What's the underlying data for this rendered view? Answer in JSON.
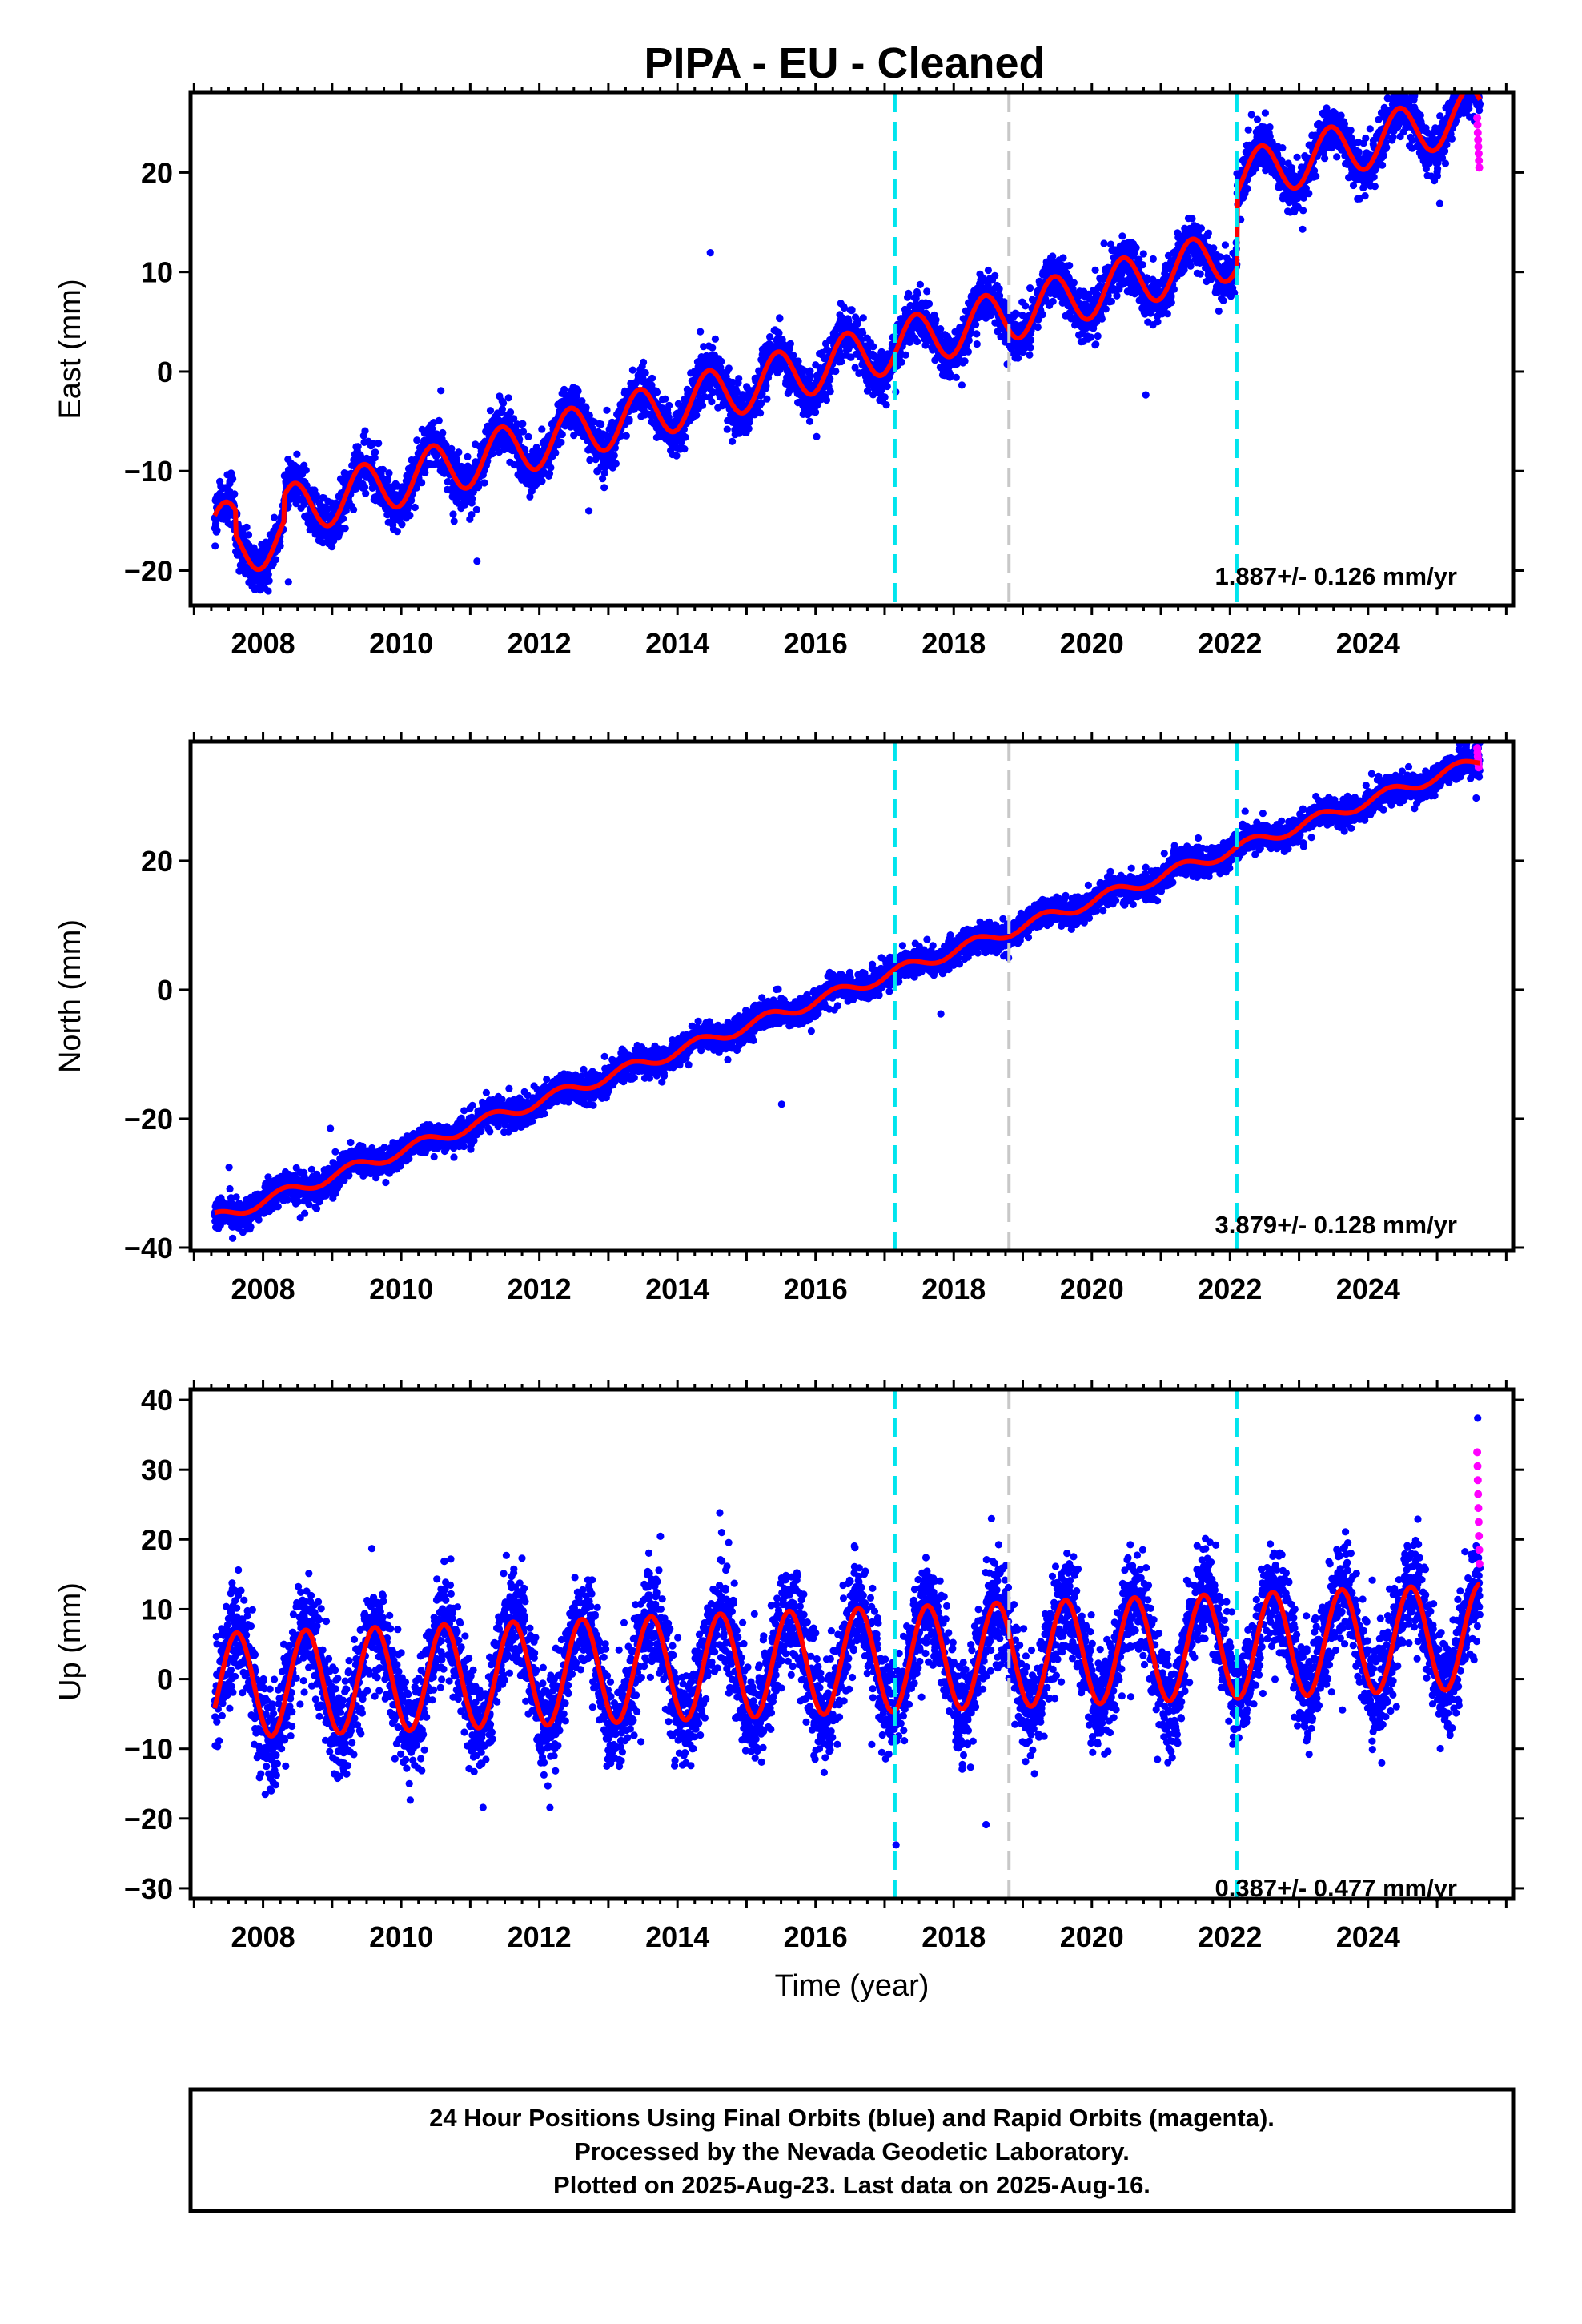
{
  "figure": {
    "title": "PIPA  - EU - Cleaned",
    "footer": [
      "24 Hour Positions Using Final Orbits (blue) and Rapid Orbits (magenta).",
      "Processed by the Nevada Geodetic Laboratory.",
      "Plotted on 2025-Aug-23. Last data on 2025-Aug-16."
    ]
  },
  "chart_data": [
    {
      "type": "scatter",
      "component": "East",
      "ylabel": "East (mm)",
      "xlabel": "",
      "xlim": [
        2006.95,
        2026.1
      ],
      "ylim": [
        -23.5,
        28
      ],
      "x_ticks": [
        2008,
        2010,
        2012,
        2014,
        2016,
        2018,
        2020,
        2022,
        2024
      ],
      "y_ticks": [
        -20,
        -10,
        0,
        10,
        20
      ],
      "rate": "1.887+/- 0.126 mm/yr",
      "model": {
        "start": 2007.3,
        "end": 2025.62,
        "y_at_start": -16.0,
        "slope_mm_per_yr": 1.887,
        "annual_amplitude": 2.6,
        "annual_peak": 0.45,
        "scatter_sigma": 1.2,
        "offsets": [
          {
            "epoch": 2007.6,
            "step": -2.5
          },
          {
            "epoch": 2008.3,
            "step": 2.5
          },
          {
            "epoch": 2022.1,
            "step": 7.5
          }
        ]
      },
      "rapid_points": {
        "x_start": 2025.58,
        "y_values": [
          25.5,
          24.8,
          24,
          23.3,
          22.6,
          21.9,
          21.2,
          20.5
        ]
      },
      "series": [
        {
          "name": "Final Orbits",
          "color": "#0000ff"
        },
        {
          "name": "Rapid Orbits",
          "color": "#ff00ff"
        }
      ],
      "vertical_lines": [
        {
          "x": 2017.15,
          "style": "cyan-dashed",
          "color": "#00e5ee"
        },
        {
          "x": 2018.8,
          "style": "gray-dashed",
          "color": "#c8c8c8"
        },
        {
          "x": 2022.1,
          "style": "cyan-dashed",
          "color": "#00e5ee"
        }
      ]
    },
    {
      "type": "scatter",
      "component": "North",
      "ylabel": "North (mm)",
      "xlabel": "",
      "xlim": [
        2006.95,
        2026.1
      ],
      "ylim": [
        -40.5,
        38.5
      ],
      "x_ticks": [
        2008,
        2010,
        2012,
        2014,
        2016,
        2018,
        2020,
        2022,
        2024
      ],
      "y_ticks": [
        -40,
        -20,
        0,
        20
      ],
      "rate": "3.879+/- 0.128 mm/yr",
      "model": {
        "start": 2007.3,
        "end": 2025.62,
        "y_at_start": -35.5,
        "slope_mm_per_yr": 3.879,
        "annual_amplitude": 0.9,
        "annual_peak": 0.3,
        "scatter_sigma": 1.1,
        "offsets": []
      },
      "rapid_points": {
        "x_start": 2025.58,
        "y_values": [
          37.5,
          36.8,
          36.2,
          35.6,
          35.0,
          34.5
        ]
      },
      "series": [
        {
          "name": "Final Orbits",
          "color": "#0000ff"
        },
        {
          "name": "Rapid Orbits",
          "color": "#ff00ff"
        }
      ],
      "vertical_lines": [
        {
          "x": 2017.15,
          "style": "cyan-dashed",
          "color": "#00e5ee"
        },
        {
          "x": 2018.8,
          "style": "gray-dashed",
          "color": "#c8c8c8"
        },
        {
          "x": 2022.1,
          "style": "cyan-dashed",
          "color": "#00e5ee"
        }
      ]
    },
    {
      "type": "scatter",
      "component": "Up",
      "ylabel": "Up (mm)",
      "xlabel": "Time (year)",
      "xlim": [
        2006.95,
        2026.1
      ],
      "ylim": [
        -31.5,
        41.5
      ],
      "x_ticks": [
        2008,
        2010,
        2012,
        2014,
        2016,
        2018,
        2020,
        2022,
        2024
      ],
      "y_ticks": [
        -30,
        -20,
        -10,
        0,
        10,
        20,
        30,
        40
      ],
      "rate": "0.387+/- 0.477 mm/yr",
      "model": {
        "start": 2007.3,
        "end": 2025.62,
        "y_at_start": -1.0,
        "slope_mm_per_yr": 0.387,
        "annual_amplitude": 7.5,
        "annual_peak": 0.62,
        "scatter_sigma": 3.6,
        "offsets": []
      },
      "rapid_points": {
        "x_start": 2025.58,
        "y_values": [
          32.5,
          30.5,
          28.5,
          26.5,
          24.5,
          22.5,
          20.5,
          18.5,
          16.5
        ]
      },
      "series": [
        {
          "name": "Final Orbits",
          "color": "#0000ff"
        },
        {
          "name": "Rapid Orbits",
          "color": "#ff00ff"
        }
      ],
      "vertical_lines": [
        {
          "x": 2017.15,
          "style": "cyan-dashed",
          "color": "#00e5ee"
        },
        {
          "x": 2018.8,
          "style": "gray-dashed",
          "color": "#c8c8c8"
        },
        {
          "x": 2022.1,
          "style": "cyan-dashed",
          "color": "#00e5ee"
        }
      ]
    }
  ]
}
